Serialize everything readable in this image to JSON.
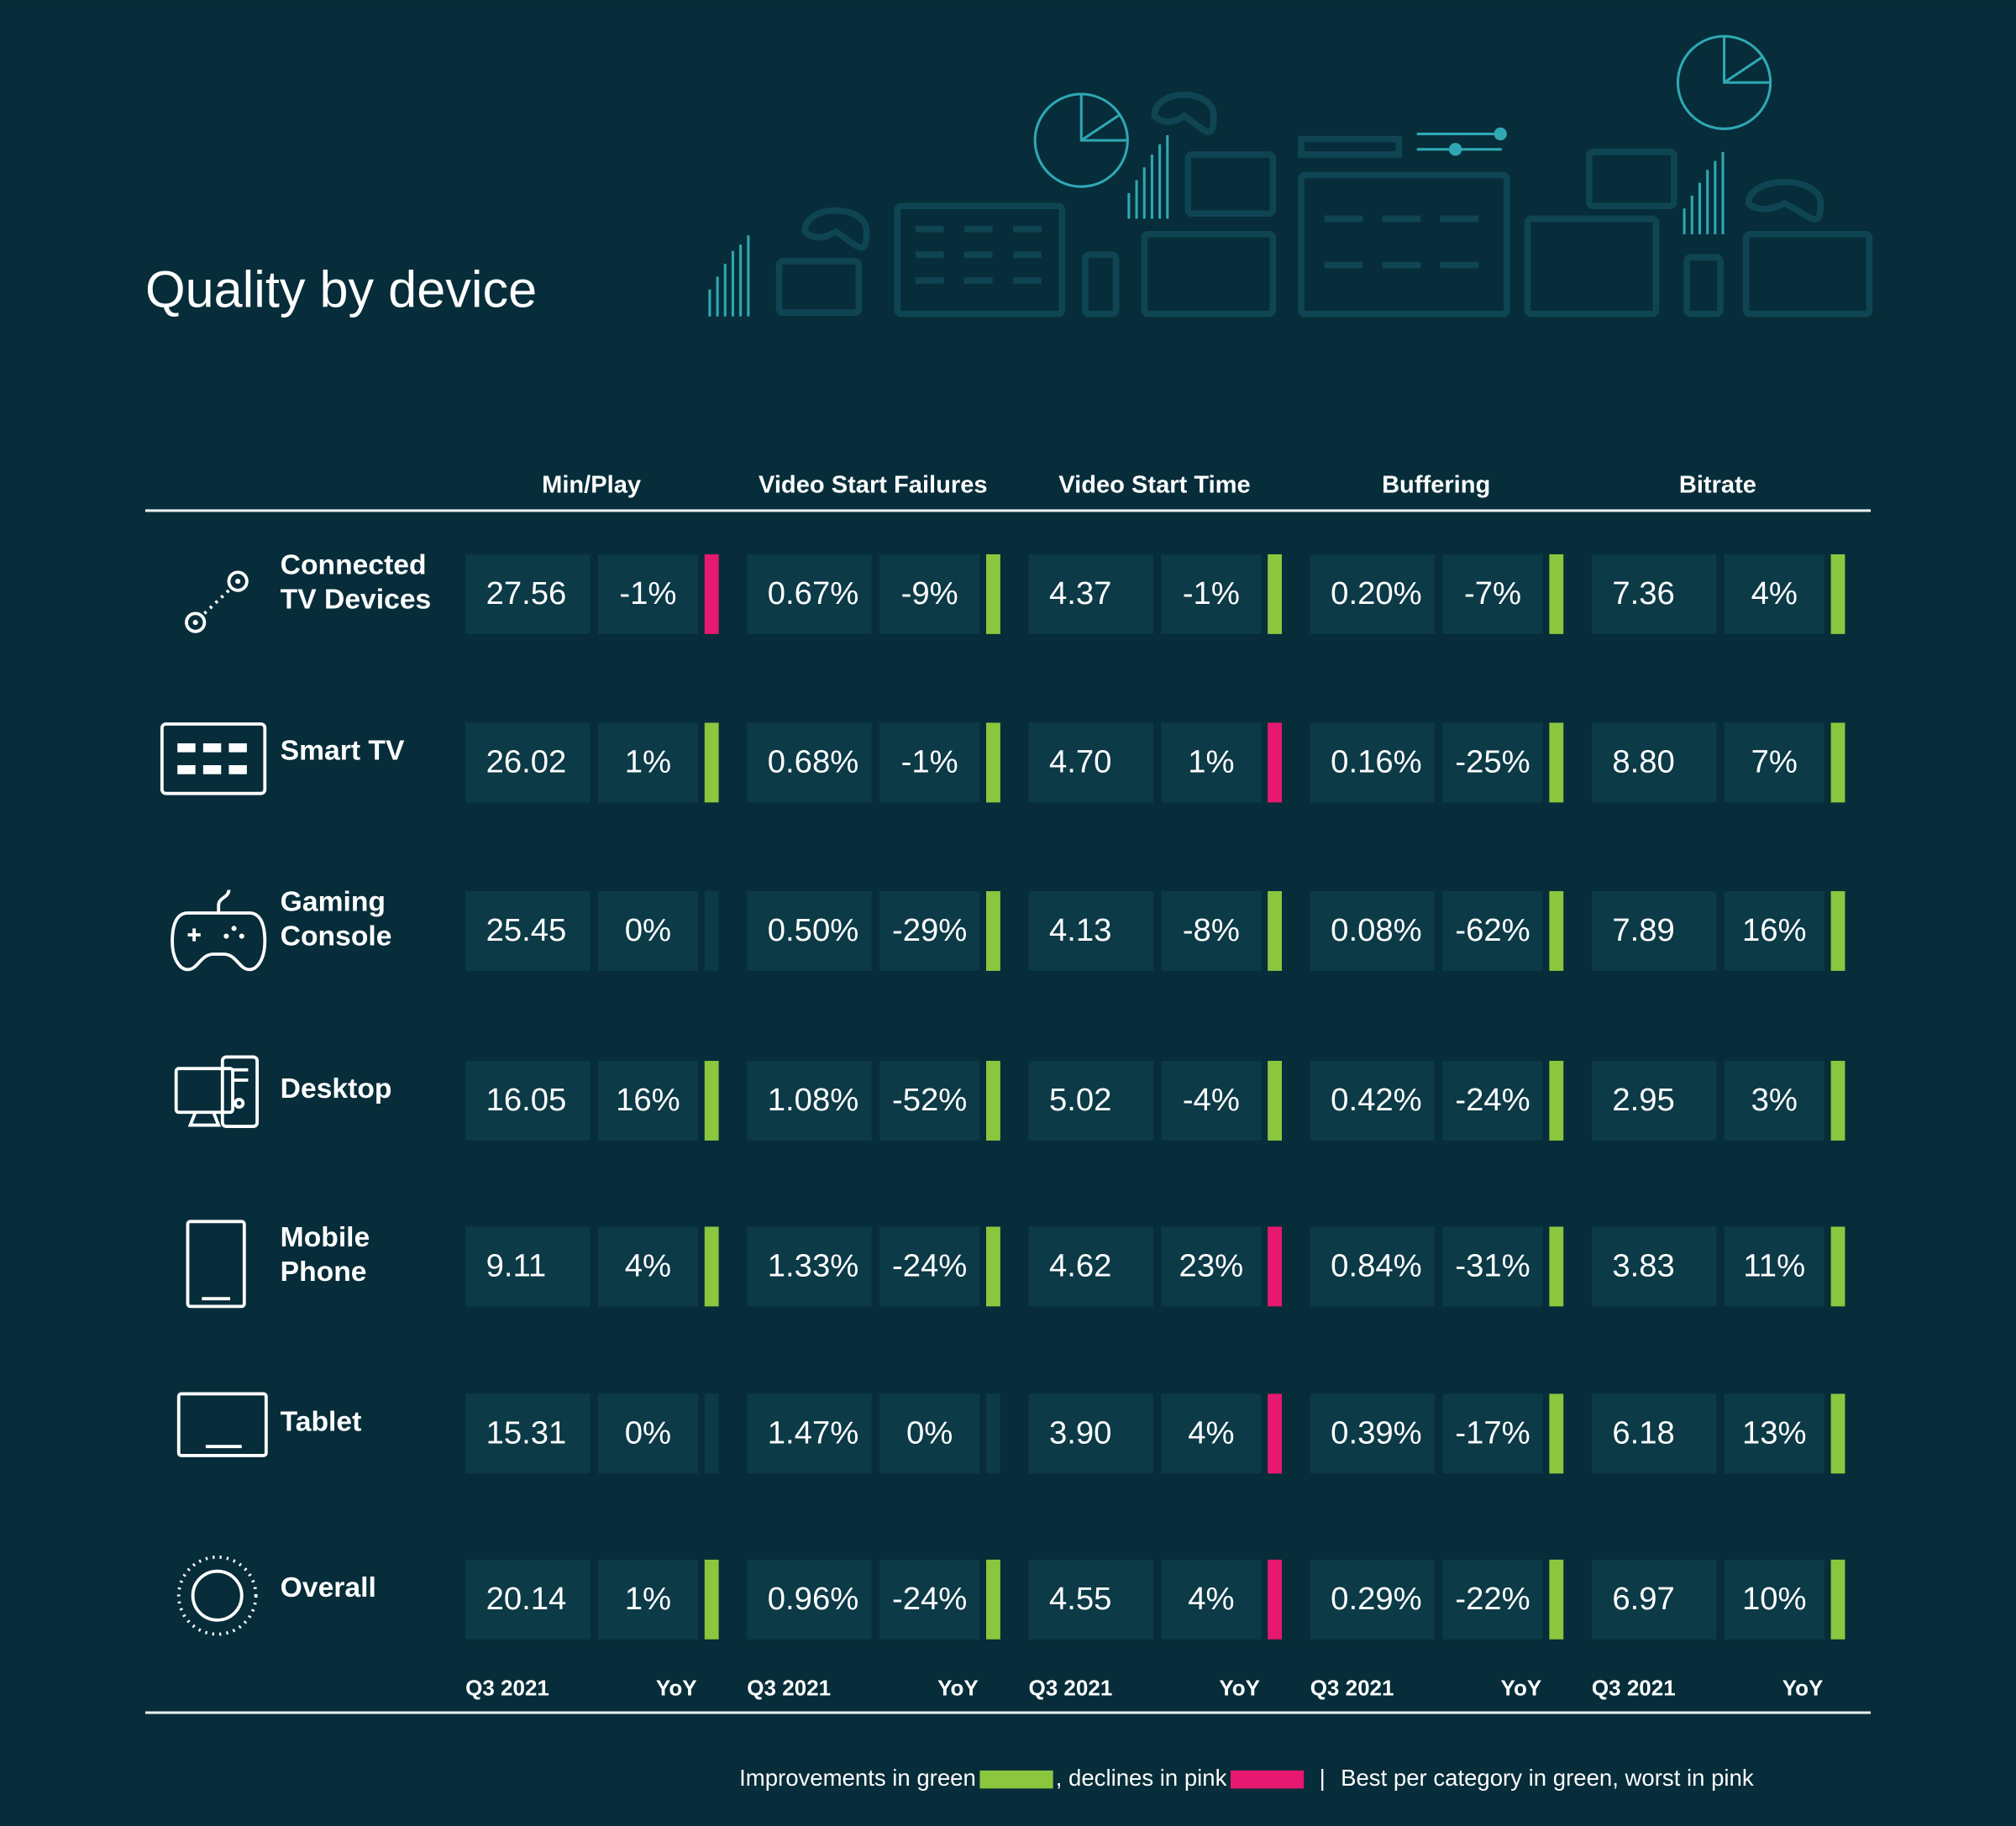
{
  "header": {
    "title": "Quality by device"
  },
  "table": {
    "columns": [
      "Min/Play",
      "Video Start Failures",
      "Video Start Time",
      "Buffering",
      "Bitrate"
    ],
    "sub_headers": [
      "Q3 2021",
      "YoY"
    ],
    "rows": [
      {
        "device": [
          "Connected",
          "TV Devices"
        ],
        "cells": [
          {
            "value": "27.56",
            "value_color": "#8cc63f",
            "yoy": "-1%",
            "bar_color": "#e6186f"
          },
          {
            "value": "0.67%",
            "yoy": "-9%",
            "bar_color": "#8cc63f"
          },
          {
            "value": "4.37",
            "yoy": "-1%",
            "bar_color": "#8cc63f"
          },
          {
            "value": "0.20%",
            "yoy": "-7%",
            "bar_color": "#8cc63f"
          },
          {
            "value": "7.36",
            "yoy": "4%",
            "bar_color": "#8cc63f"
          }
        ]
      },
      {
        "device": [
          "Smart TV"
        ],
        "cells": [
          {
            "value": "26.02",
            "yoy": "1%",
            "bar_color": "#8cc63f"
          },
          {
            "value": "0.68%",
            "yoy": "-1%",
            "bar_color": "#8cc63f"
          },
          {
            "value": "4.70",
            "yoy": "1%",
            "bar_color": "#e6186f"
          },
          {
            "value": "0.16%",
            "yoy": "-25%",
            "bar_color": "#8cc63f"
          },
          {
            "value": "8.80",
            "value_color": "#8cc63f",
            "yoy": "7%",
            "bar_color": "#8cc63f"
          }
        ]
      },
      {
        "device": [
          "Gaming",
          "Console"
        ],
        "cells": [
          {
            "value": "25.45",
            "yoy": "0%"
          },
          {
            "value": "0.50%",
            "value_color": "#8cc63f",
            "yoy": "-29%",
            "bar_color": "#8cc63f"
          },
          {
            "value": "4.13",
            "yoy": "-8%",
            "bar_color": "#8cc63f"
          },
          {
            "value": "0.08%",
            "value_color": "#8cc63f",
            "yoy": "-62%",
            "bar_color": "#8cc63f"
          },
          {
            "value": "7.89",
            "yoy": "16%",
            "bar_color": "#8cc63f"
          }
        ]
      },
      {
        "device": [
          "Desktop"
        ],
        "cells": [
          {
            "value": "16.05",
            "yoy": "16%",
            "bar_color": "#8cc63f"
          },
          {
            "value": "1.08%",
            "yoy": "-52%",
            "bar_color": "#8cc63f"
          },
          {
            "value": "5.02",
            "value_color": "#e6186f",
            "yoy": "-4%",
            "bar_color": "#8cc63f"
          },
          {
            "value": "0.42%",
            "yoy": "-24%",
            "bar_color": "#8cc63f"
          },
          {
            "value": "2.95",
            "value_color": "#e6186f",
            "yoy": "3%",
            "bar_color": "#8cc63f"
          }
        ]
      },
      {
        "device": [
          "Mobile",
          "Phone"
        ],
        "cells": [
          {
            "value": "9.11",
            "value_color": "#e6186f",
            "yoy": "4%",
            "bar_color": "#8cc63f"
          },
          {
            "value": "1.33%",
            "yoy": "-24%",
            "bar_color": "#8cc63f"
          },
          {
            "value": "4.62",
            "yoy": "23%",
            "bar_color": "#e6186f"
          },
          {
            "value": "0.84%",
            "value_color": "#e6186f",
            "yoy": "-31%",
            "bar_color": "#8cc63f"
          },
          {
            "value": "3.83",
            "yoy": "11%",
            "bar_color": "#8cc63f"
          }
        ]
      },
      {
        "device": [
          "Tablet"
        ],
        "cells": [
          {
            "value": "15.31",
            "yoy": "0%"
          },
          {
            "value": "1.47%",
            "value_color": "#e6186f",
            "yoy": "0%"
          },
          {
            "value": "3.90",
            "value_color": "#8cc63f",
            "yoy": "4%",
            "bar_color": "#e6186f"
          },
          {
            "value": "0.39%",
            "yoy": "-17%",
            "bar_color": "#8cc63f"
          },
          {
            "value": "6.18",
            "yoy": "13%",
            "bar_color": "#8cc63f"
          }
        ]
      },
      {
        "device": [
          "Overall"
        ],
        "cells": [
          {
            "value": "20.14",
            "yoy": "1%",
            "bar_color": "#8cc63f"
          },
          {
            "value": "0.96%",
            "yoy": "-24%",
            "bar_color": "#8cc63f"
          },
          {
            "value": "4.55",
            "yoy": "4%",
            "bar_color": "#e6186f"
          },
          {
            "value": "0.29%",
            "yoy": "-22%",
            "bar_color": "#8cc63f"
          },
          {
            "value": "6.97",
            "yoy": "10%",
            "bar_color": "#8cc63f"
          }
        ]
      }
    ]
  },
  "legend": {
    "improvements": "Improvements in green",
    "improvement_color": "#8cc63f",
    "declines": ", declines in pink",
    "decline_color": "#e6186f",
    "separator": "|",
    "best": "Best per category in ",
    "best_word": "green",
    "worst": ", worst in ",
    "worst_word": "pink"
  }
}
